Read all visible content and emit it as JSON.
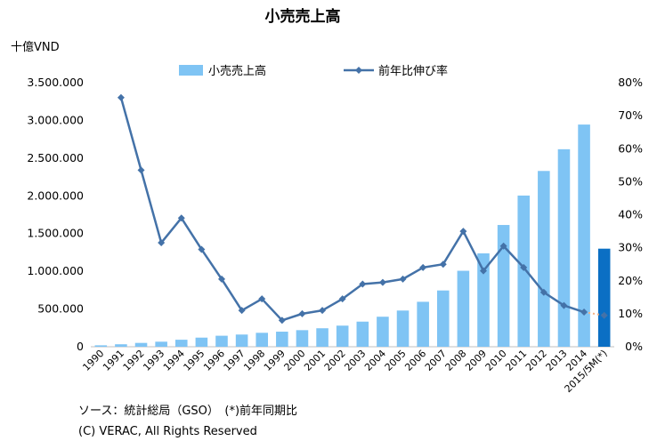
{
  "chart_data": {
    "type": "bar",
    "title": "小売売上高",
    "left_axis_unit": "十億VND",
    "categories": [
      "1990",
      "1991",
      "1992",
      "1993",
      "1994",
      "1995",
      "1996",
      "1997",
      "1998",
      "1999",
      "2000",
      "2001",
      "2002",
      "2003",
      "2004",
      "2005",
      "2006",
      "2007",
      "2008",
      "2009",
      "2010",
      "2011",
      "2012",
      "2013",
      "2014",
      "2015/5M(*)"
    ],
    "series": [
      {
        "name": "小売売上高",
        "type": "bar",
        "axis": "left",
        "color": "#7fc4f4",
        "highlight_color": "#0b6fc4",
        "values": [
          19000,
          33000,
          51000,
          67000,
          93000,
          121000,
          146000,
          162000,
          185000,
          200000,
          220000,
          245000,
          280000,
          333000,
          398000,
          480000,
          596000,
          746000,
          1007000,
          1238000,
          1614000,
          2004000,
          2330000,
          2618000,
          2945000,
          1300000
        ]
      },
      {
        "name": "前年比伸び率",
        "type": "line",
        "axis": "right",
        "color": "#4472a8",
        "values": [
          null,
          75.5,
          53.5,
          31.5,
          39,
          29.5,
          20.5,
          11,
          14.5,
          8,
          10,
          11,
          14.5,
          19,
          19.5,
          20.5,
          24,
          25,
          35,
          23,
          30.5,
          24,
          16.5,
          12.5,
          10.5,
          9.5
        ]
      }
    ],
    "left_axis": {
      "min": 0,
      "max": 3500000,
      "ticks": [
        "0",
        "500.000",
        "1.000.000",
        "1.500.000",
        "2.000.000",
        "2.500.000",
        "3.000.000",
        "3.500.000"
      ]
    },
    "right_axis": {
      "min": 0,
      "max": 80,
      "ticks": [
        "0%",
        "10%",
        "20%",
        "30%",
        "40%",
        "50%",
        "60%",
        "70%",
        "80%"
      ]
    },
    "legend_position": "top-center",
    "grid": false
  },
  "notes": {
    "source": "ソース：統計総局（GSO）　(*)前年同期比",
    "copyright": "(C) VERAC, All Rights Reserved"
  }
}
